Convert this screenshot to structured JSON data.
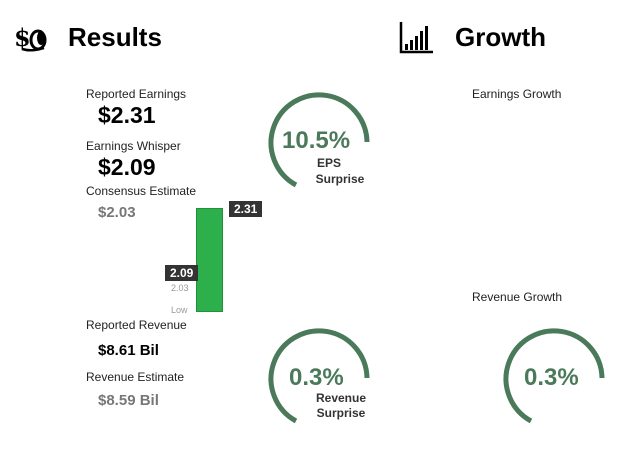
{
  "results": {
    "title": "Results",
    "icon": "money-icon",
    "reported_earnings_label": "Reported Earnings",
    "reported_earnings_value": "$2.31",
    "earnings_whisper_label": "Earnings Whisper",
    "earnings_whisper_value": "$2.09",
    "consensus_label": "Consensus Estimate",
    "consensus_value": "$2.03",
    "eps_surprise_pct": "10.5%",
    "eps_surprise_line1": "EPS",
    "eps_surprise_line2": "Surprise",
    "chart": {
      "reported_tag": "2.31",
      "whisper_tag": "2.09",
      "consensus_tag": "2.03",
      "low_label": "Low"
    },
    "reported_revenue_label": "Reported Revenue",
    "reported_revenue_value": "$8.61 Bil",
    "revenue_estimate_label": "Revenue Estimate",
    "revenue_estimate_value": "$8.59 Bil",
    "revenue_surprise_pct": "0.3%",
    "revenue_surprise_line1": "Revenue",
    "revenue_surprise_line2": "Surprise"
  },
  "growth": {
    "title": "Growth",
    "icon": "bar-chart-icon",
    "earnings_growth_label": "Earnings Growth",
    "revenue_growth_label": "Revenue Growth",
    "revenue_growth_pct": "0.3%"
  },
  "colors": {
    "ring": "#4a7a5a",
    "bar": "#2db04b",
    "tag": "#333333"
  }
}
